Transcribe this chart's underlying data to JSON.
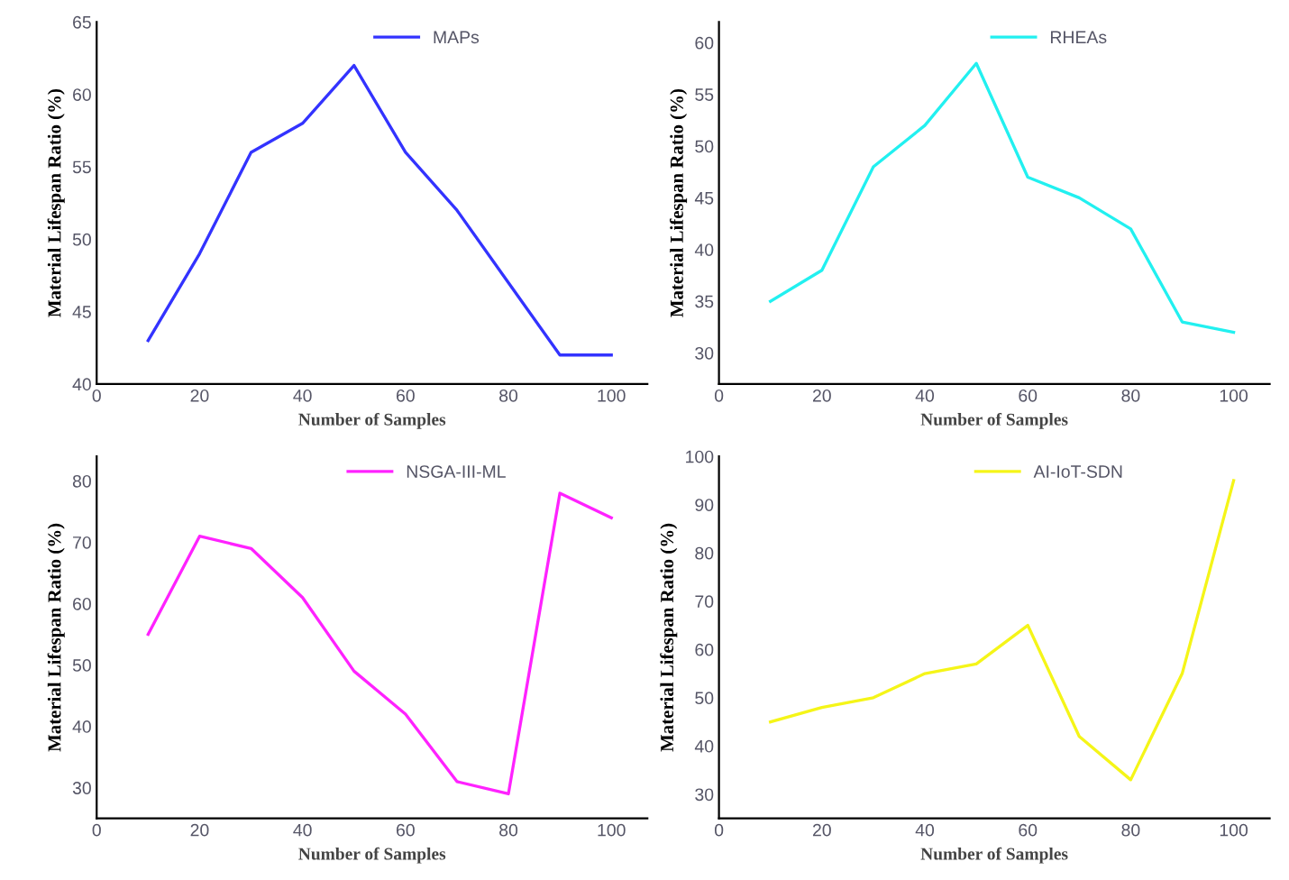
{
  "chart_data": [
    {
      "type": "line",
      "xlabel": "Number of Samples",
      "ylabel": "Material Lifespan Ratio (%)",
      "x": [
        10,
        20,
        30,
        40,
        50,
        60,
        70,
        80,
        90,
        100
      ],
      "xlim": [
        0,
        107
      ],
      "xticks": [
        0,
        20,
        40,
        60,
        80,
        100
      ],
      "ylim": [
        40,
        65
      ],
      "yticks": [
        40,
        45,
        50,
        55,
        60,
        65
      ],
      "legend": "top",
      "grid": false,
      "series": [
        {
          "name": "MAPs",
          "color": "#3333ff",
          "values": [
            43,
            49,
            56,
            58,
            62,
            56,
            52,
            47,
            42,
            42
          ]
        }
      ]
    },
    {
      "type": "line",
      "xlabel": "Number of Samples",
      "ylabel": "Material Lifespan Ratio (%)",
      "x": [
        10,
        20,
        30,
        40,
        50,
        60,
        70,
        80,
        90,
        100
      ],
      "xlim": [
        0,
        107
      ],
      "xticks": [
        0,
        20,
        40,
        60,
        80,
        100
      ],
      "ylim": [
        27,
        62
      ],
      "yticks": [
        30,
        35,
        40,
        45,
        50,
        55,
        60
      ],
      "legend": "top",
      "grid": false,
      "series": [
        {
          "name": "RHEAs",
          "color": "#22f0f0",
          "values": [
            35,
            38,
            48,
            52,
            58,
            47,
            45,
            42,
            33,
            32
          ]
        }
      ]
    },
    {
      "type": "line",
      "xlabel": "Number of Samples",
      "ylabel": "Material Lifespan Ratio (%)",
      "x": [
        10,
        20,
        30,
        40,
        50,
        60,
        70,
        80,
        90,
        100
      ],
      "xlim": [
        0,
        107
      ],
      "xticks": [
        0,
        20,
        40,
        60,
        80,
        100
      ],
      "ylim": [
        25,
        84
      ],
      "yticks": [
        30,
        40,
        50,
        60,
        70,
        80
      ],
      "legend": "top",
      "grid": false,
      "series": [
        {
          "name": "NSGA-III-ML",
          "color": "#ff22ff",
          "values": [
            55,
            71,
            69,
            61,
            49,
            42,
            31,
            29,
            78,
            74
          ]
        }
      ]
    },
    {
      "type": "line",
      "xlabel": "Number of Samples",
      "ylabel": "Material Lifespan Ratio (%)",
      "x": [
        10,
        20,
        30,
        40,
        50,
        60,
        70,
        80,
        90,
        100
      ],
      "xlim": [
        0,
        107
      ],
      "xticks": [
        0,
        20,
        40,
        60,
        80,
        100
      ],
      "ylim": [
        25,
        100
      ],
      "yticks": [
        30,
        40,
        50,
        60,
        70,
        80,
        90,
        100
      ],
      "legend": "top",
      "grid": false,
      "series": [
        {
          "name": "AI-IoT-SDN",
          "color": "#f5f518",
          "values": [
            45,
            48,
            50,
            55,
            57,
            65,
            42,
            33,
            55,
            95
          ]
        }
      ]
    }
  ]
}
